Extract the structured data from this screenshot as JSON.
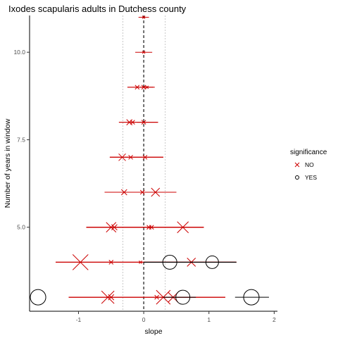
{
  "chart_data": {
    "type": "scatter",
    "title": "Ixodes scapularis adults in Dutchess county",
    "xlabel": "slope",
    "ylabel": "Number of years in window",
    "xlim": [
      -1.75,
      2.05
    ],
    "ylim": [
      2.6,
      11.05
    ],
    "x_ticks": [
      -1,
      0,
      1,
      2
    ],
    "y_ticks": [
      5.0,
      7.5,
      10.0
    ],
    "x_tick_labels": [
      "-1",
      "0",
      "1",
      "2"
    ],
    "y_tick_labels": [
      "5.0",
      "7.5",
      "10.0"
    ],
    "reference_lines": {
      "zero": 0,
      "dotted": [
        -0.32,
        0.33
      ]
    },
    "grid": false,
    "legend": {
      "title": "significance",
      "position": "right",
      "entries": [
        {
          "label": "NO",
          "shape": "x",
          "color": "#cc0000"
        },
        {
          "label": "YES",
          "shape": "circle",
          "color": "#000000"
        }
      ]
    },
    "windows": [
      {
        "years": 11,
        "sig": "NO",
        "color": "#cc0000",
        "points": [
          {
            "slope": 0.0,
            "lo": -0.08,
            "hi": 0.08,
            "size": 2
          }
        ]
      },
      {
        "years": 10,
        "sig": "NO",
        "color": "#cc0000",
        "points": [
          {
            "slope": 0.0,
            "lo": -0.13,
            "hi": 0.13,
            "size": 2
          }
        ]
      },
      {
        "years": 9,
        "sig": "NO",
        "color": "#cc0000",
        "points": [
          {
            "slope": -0.1,
            "lo": -0.25,
            "hi": 0.15,
            "size": 3
          },
          {
            "slope": 0.0,
            "lo": -0.25,
            "hi": 0.15,
            "size": 3
          },
          {
            "slope": 0.05,
            "lo": -0.05,
            "hi": 0.17,
            "size": 2
          }
        ]
      },
      {
        "years": 8,
        "sig": "NO",
        "color": "#cc0000",
        "points": [
          {
            "slope": -0.22,
            "lo": -0.38,
            "hi": 0.22,
            "size": 4
          },
          {
            "slope": -0.17,
            "lo": -0.38,
            "hi": 0.22,
            "size": 3
          },
          {
            "slope": 0.0,
            "lo": -0.1,
            "hi": 0.22,
            "size": 3
          }
        ]
      },
      {
        "years": 7,
        "sig": "NO",
        "color": "#cc0000",
        "points": [
          {
            "slope": -0.33,
            "lo": -0.52,
            "hi": 0.3,
            "size": 5
          },
          {
            "slope": -0.2,
            "lo": -0.52,
            "hi": 0.3,
            "size": 3
          },
          {
            "slope": 0.02,
            "lo": -0.52,
            "hi": 0.3,
            "size": 3
          }
        ]
      },
      {
        "years": 6,
        "sig": "NO",
        "color": "#cc0000",
        "points": [
          {
            "slope": -0.3,
            "lo": -0.6,
            "hi": 0.5,
            "size": 4
          },
          {
            "slope": -0.02,
            "lo": -0.6,
            "hi": 0.5,
            "size": 3
          },
          {
            "slope": 0.18,
            "lo": -0.6,
            "hi": 0.5,
            "size": 6
          }
        ]
      },
      {
        "years": 5,
        "sig": "NO",
        "color": "#cc0000",
        "points": [
          {
            "slope": -0.5,
            "lo": -0.88,
            "hi": 0.92,
            "size": 7
          },
          {
            "slope": -0.45,
            "lo": -0.88,
            "hi": 0.92,
            "size": 4
          },
          {
            "slope": 0.08,
            "lo": -0.88,
            "hi": 0.92,
            "size": 3
          },
          {
            "slope": 0.12,
            "lo": -0.88,
            "hi": 0.92,
            "size": 3
          },
          {
            "slope": 0.6,
            "lo": -0.88,
            "hi": 0.92,
            "size": 8
          }
        ]
      },
      {
        "years": 4,
        "sig": "NO",
        "color": "#cc0000",
        "points": [
          {
            "slope": -0.97,
            "lo": -1.35,
            "hi": 1.42,
            "size": 11
          },
          {
            "slope": -0.5,
            "lo": -1.35,
            "hi": 1.42,
            "size": 3
          },
          {
            "slope": -0.05,
            "lo": -1.35,
            "hi": 1.42,
            "size": 2
          },
          {
            "slope": 0.73,
            "lo": -1.35,
            "hi": 1.42,
            "size": 6
          }
        ]
      },
      {
        "years": 4,
        "sig": "YES",
        "color": "#000000",
        "points": [
          {
            "slope": 0.4,
            "lo": 0.0,
            "hi": 1.42,
            "size": 10
          },
          {
            "slope": 1.05,
            "lo": 0.0,
            "hi": 1.42,
            "size": 9
          }
        ]
      },
      {
        "years": 3,
        "sig": "NO",
        "color": "#cc0000",
        "points": [
          {
            "slope": -0.55,
            "lo": -1.15,
            "hi": 1.25,
            "size": 9
          },
          {
            "slope": -0.5,
            "lo": -1.15,
            "hi": 1.25,
            "size": 4
          },
          {
            "slope": 0.2,
            "lo": -1.15,
            "hi": 1.25,
            "size": 3
          },
          {
            "slope": 0.3,
            "lo": -1.15,
            "hi": 1.25,
            "size": 10
          },
          {
            "slope": 0.45,
            "lo": -1.15,
            "hi": 1.25,
            "size": 7
          }
        ]
      },
      {
        "years": 3,
        "sig": "YES",
        "color": "#000000",
        "points": [
          {
            "slope": -1.62,
            "lo": -1.62,
            "hi": -1.62,
            "size": 11
          },
          {
            "slope": 0.6,
            "lo": 0.3,
            "hi": 0.8,
            "size": 10
          },
          {
            "slope": 1.65,
            "lo": 1.4,
            "hi": 1.92,
            "size": 11
          }
        ]
      }
    ]
  }
}
